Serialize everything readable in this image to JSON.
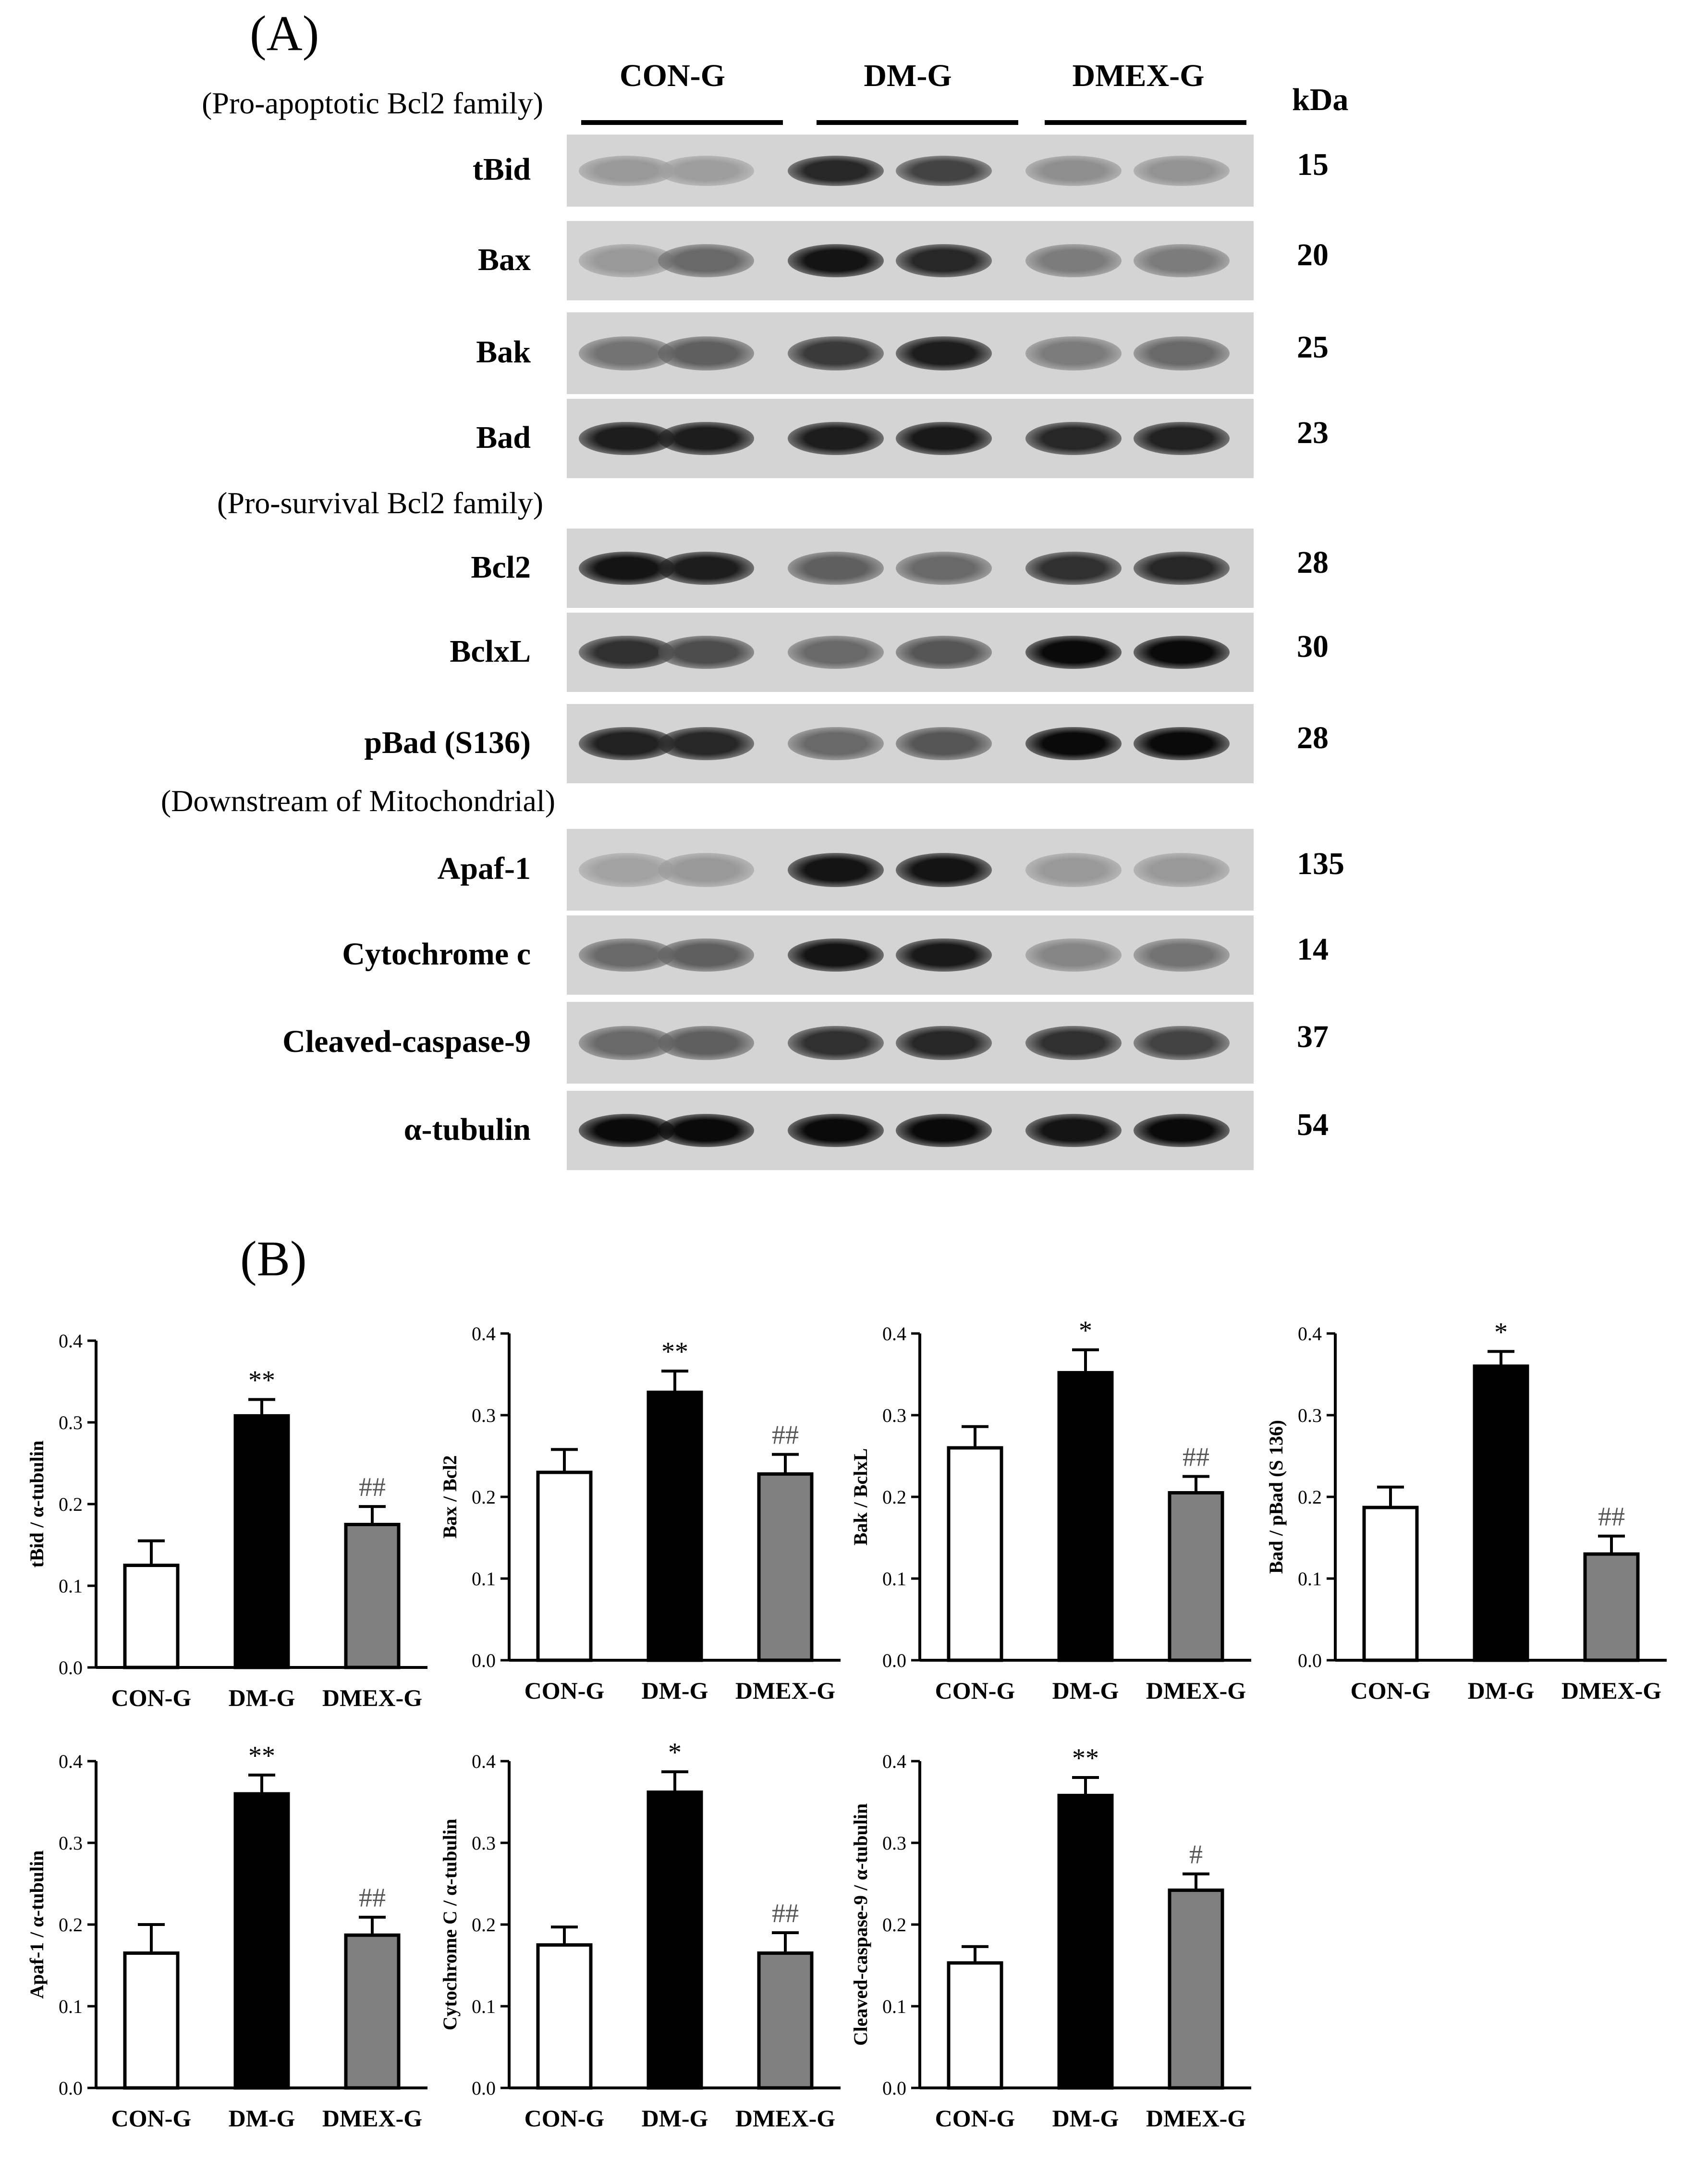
{
  "panel_a": {
    "letter": "(A)",
    "groups": [
      "CON-G",
      "DM-G",
      "DMEX-G"
    ],
    "kda_header": "kDa",
    "sections": [
      {
        "label": "(Pro-apoptotic Bcl2 family)"
      },
      {
        "label": "(Pro-survival Bcl2 family)"
      },
      {
        "label": "(Downstream of Mitochondrial)"
      }
    ],
    "blots": [
      {
        "label": "tBid",
        "kda": "15",
        "intensity": [
          0.25,
          0.22,
          0.85,
          0.7,
          0.3,
          0.28
        ]
      },
      {
        "label": "Bax",
        "kda": "20",
        "intensity": [
          0.25,
          0.5,
          0.95,
          0.85,
          0.4,
          0.4
        ]
      },
      {
        "label": "Bak",
        "kda": "25",
        "intensity": [
          0.45,
          0.55,
          0.75,
          0.9,
          0.4,
          0.5
        ]
      },
      {
        "label": "Bad",
        "kda": "23",
        "intensity": [
          0.9,
          0.9,
          0.9,
          0.92,
          0.85,
          0.88
        ]
      },
      {
        "label": "Bcl2",
        "kda": "28",
        "intensity": [
          0.95,
          0.9,
          0.55,
          0.5,
          0.8,
          0.85
        ]
      },
      {
        "label": "BclxL",
        "kda": "30",
        "intensity": [
          0.8,
          0.65,
          0.5,
          0.6,
          1.0,
          1.0
        ]
      },
      {
        "label": "pBad (S136)",
        "kda": "28",
        "intensity": [
          0.88,
          0.85,
          0.5,
          0.6,
          1.0,
          1.0
        ]
      },
      {
        "label": "Apaf-1",
        "kda": "135",
        "intensity": [
          0.2,
          0.25,
          0.95,
          0.95,
          0.25,
          0.25
        ]
      },
      {
        "label": "Cytochrome c",
        "kda": "14",
        "intensity": [
          0.5,
          0.55,
          0.95,
          0.92,
          0.35,
          0.45
        ]
      },
      {
        "label": "Cleaved-caspase-9",
        "kda": "37",
        "intensity": [
          0.5,
          0.55,
          0.8,
          0.85,
          0.8,
          0.7
        ]
      },
      {
        "label": "α-tubulin",
        "kda": "54",
        "intensity": [
          1.0,
          1.0,
          1.0,
          1.0,
          0.95,
          1.0
        ]
      }
    ]
  },
  "panel_b": {
    "letter": "(B)"
  },
  "colors": {
    "CON-G": "#ffffff",
    "DM-G": "#000000",
    "DMEX-G": "#808080"
  },
  "chart_data": [
    {
      "type": "bar",
      "ylabel": "tBid / α-tubulin",
      "categories": [
        "CON-G",
        "DM-G",
        "DMEX-G"
      ],
      "values": [
        0.125,
        0.308,
        0.175
      ],
      "errors": [
        0.03,
        0.02,
        0.022
      ],
      "annotations": [
        "",
        "**",
        "##"
      ],
      "ylim": [
        0,
        0.4
      ],
      "yticks": [
        "0.0",
        "0.1",
        "0.2",
        "0.3",
        "0.4"
      ]
    },
    {
      "type": "bar",
      "ylabel": "Bax / Bcl2",
      "categories": [
        "CON-G",
        "DM-G",
        "DMEX-G"
      ],
      "values": [
        0.23,
        0.328,
        0.228
      ],
      "errors": [
        0.028,
        0.026,
        0.024
      ],
      "annotations": [
        "",
        "**",
        "##"
      ],
      "ylim": [
        0,
        0.4
      ],
      "yticks": [
        "0.0",
        "0.1",
        "0.2",
        "0.3",
        "0.4"
      ]
    },
    {
      "type": "bar",
      "ylabel": "Bak / BclxL",
      "categories": [
        "CON-G",
        "DM-G",
        "DMEX-G"
      ],
      "values": [
        0.26,
        0.352,
        0.205
      ],
      "errors": [
        0.026,
        0.028,
        0.02
      ],
      "annotations": [
        "",
        "*",
        "##"
      ],
      "ylim": [
        0,
        0.4
      ],
      "yticks": [
        "0.0",
        "0.1",
        "0.2",
        "0.3",
        "0.4"
      ]
    },
    {
      "type": "bar",
      "ylabel": "Bad / pBad (S 136)",
      "categories": [
        "CON-G",
        "DM-G",
        "DMEX-G"
      ],
      "values": [
        0.187,
        0.36,
        0.13
      ],
      "errors": [
        0.025,
        0.018,
        0.022
      ],
      "annotations": [
        "",
        "*",
        "##"
      ],
      "ylim": [
        0,
        0.4
      ],
      "yticks": [
        "0.0",
        "0.1",
        "0.2",
        "0.3",
        "0.4"
      ]
    },
    {
      "type": "bar",
      "ylabel": "Apaf-1 / α-tubulin",
      "categories": [
        "CON-G",
        "DM-G",
        "DMEX-G"
      ],
      "values": [
        0.165,
        0.36,
        0.187
      ],
      "errors": [
        0.035,
        0.023,
        0.022
      ],
      "annotations": [
        "",
        "**",
        "##"
      ],
      "ylim": [
        0,
        0.4
      ],
      "yticks": [
        "0.0",
        "0.1",
        "0.2",
        "0.3",
        "0.4"
      ]
    },
    {
      "type": "bar",
      "ylabel": "Cytochrome C / α-tubulin",
      "categories": [
        "CON-G",
        "DM-G",
        "DMEX-G"
      ],
      "values": [
        0.175,
        0.362,
        0.165
      ],
      "errors": [
        0.022,
        0.025,
        0.025
      ],
      "annotations": [
        "",
        "*",
        "##"
      ],
      "ylim": [
        0,
        0.4
      ],
      "yticks": [
        "0.0",
        "0.1",
        "0.2",
        "0.3",
        "0.4"
      ]
    },
    {
      "type": "bar",
      "ylabel": "Cleaved-caspase-9 / α-tubulin",
      "categories": [
        "CON-G",
        "DM-G",
        "DMEX-G"
      ],
      "values": [
        0.153,
        0.358,
        0.242
      ],
      "errors": [
        0.02,
        0.022,
        0.02
      ],
      "annotations": [
        "",
        "**",
        "#"
      ],
      "ylim": [
        0,
        0.4
      ],
      "yticks": [
        "0.0",
        "0.1",
        "0.2",
        "0.3",
        "0.4"
      ]
    }
  ]
}
